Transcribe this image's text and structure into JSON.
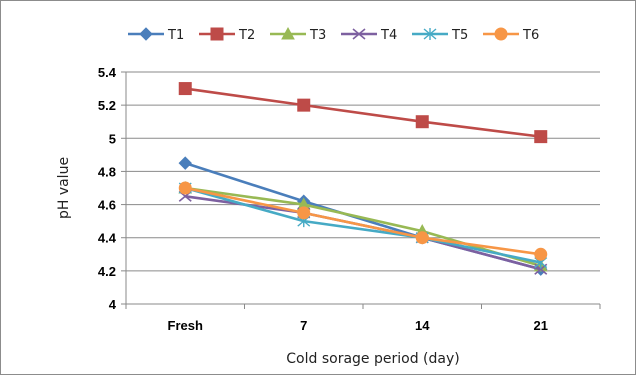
{
  "chart_data": {
    "type": "line",
    "categories": [
      "Fresh",
      "7",
      "14",
      "21"
    ],
    "xlabel": "Cold sorage period (day)",
    "ylabel": "pH value",
    "ylim": [
      4,
      5.4
    ],
    "yticks": [
      "4",
      "4.2",
      "4.4",
      "4.6",
      "4.8",
      "5",
      "5.2",
      "5.4"
    ],
    "grid": "horizontal",
    "legend_position": "top",
    "series": [
      {
        "name": "T1",
        "values": [
          4.85,
          4.62,
          4.4,
          4.21
        ],
        "color": "#4a7ebb",
        "marker": "diamond"
      },
      {
        "name": "T2",
        "values": [
          5.3,
          5.2,
          5.1,
          5.01
        ],
        "color": "#be4b48",
        "marker": "square"
      },
      {
        "name": "T3",
        "values": [
          4.7,
          4.6,
          4.44,
          4.23
        ],
        "color": "#98b954",
        "marker": "triangle"
      },
      {
        "name": "T4",
        "values": [
          4.65,
          4.55,
          4.4,
          4.21
        ],
        "color": "#7d60a0",
        "marker": "x"
      },
      {
        "name": "T5",
        "values": [
          4.7,
          4.5,
          4.4,
          4.25
        ],
        "color": "#46aac5",
        "marker": "star"
      },
      {
        "name": "T6",
        "values": [
          4.7,
          4.55,
          4.4,
          4.3
        ],
        "color": "#f79646",
        "marker": "circle"
      }
    ]
  }
}
